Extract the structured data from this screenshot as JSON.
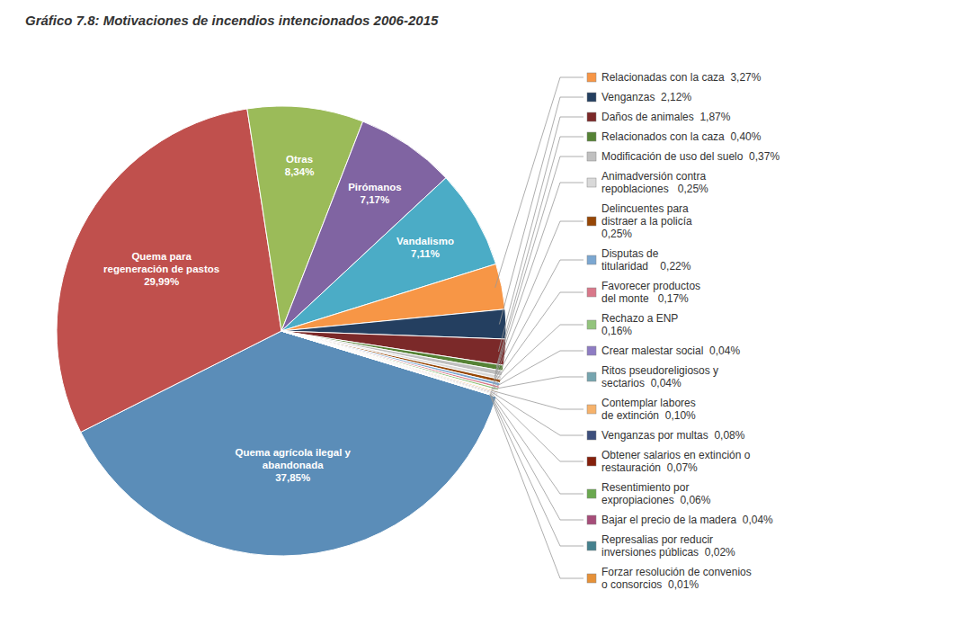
{
  "chart_data": {
    "type": "pie",
    "title": "Gráfico 7.8: Motivaciones de incendios intencionados 2006-2015",
    "categories": [
      "Quema agrícola ilegal y\nabandonada\n37,85%",
      "Quema para\nregeneración de pastos\n29,99%",
      "Otras\n8,34%",
      "Pirómanos\n7,17%",
      "Vandalismo\n7,11%",
      "Relacionadas con la caza  3,27%",
      "Venganzas  2,12%",
      "Daños de animales  1,87%",
      "Relacionados con la caza  0,40%",
      "Modificación de uso del suelo  0,37%",
      "Animadversión contra\nrepoblaciones   0,25%",
      "Delincuentes para\ndistraer a la policía\n0,25%",
      "Disputas de\ntitularidad    0,22%",
      "Favorecer productos\ndel monte   0,17%",
      "Rechazo a ENP\n0,16%",
      "Crear malestar social  0,04%",
      "Ritos pseudoreligiosos y\nsectarios  0,04%",
      "Contemplar labores\nde extinción  0,10%",
      "Venganzas por multas  0,08%",
      "Obtener salarios en extinción o\nrestauración  0,07%",
      "Resentimiento por\nexpropiaciones  0,06%",
      "Bajar el precio de la madera  0,04%",
      "Represalias por reducir\ninversiones públicas  0,02%",
      "Forzar resolución de convenios\no consorcios  0,01%"
    ],
    "values": [
      37.85,
      29.99,
      8.34,
      7.17,
      7.11,
      3.27,
      2.12,
      1.87,
      0.4,
      0.37,
      0.25,
      0.25,
      0.22,
      0.17,
      0.16,
      0.04,
      0.04,
      0.1,
      0.08,
      0.07,
      0.06,
      0.04,
      0.02,
      0.01
    ],
    "colors": [
      "#5B8DB8",
      "#C0504D",
      "#9BBB59",
      "#8064A2",
      "#4BACC6",
      "#F79646",
      "#243F60",
      "#7B2929",
      "#558235",
      "#C0C0C0",
      "#D9D9D9",
      "#974706",
      "#7BA7D1",
      "#D9788A",
      "#93C47D",
      "#8E7CC3",
      "#76A5AF",
      "#F6B26B",
      "#3D4F7C",
      "#85200C",
      "#6AA84F",
      "#A64D79",
      "#45818E",
      "#E69138"
    ]
  }
}
